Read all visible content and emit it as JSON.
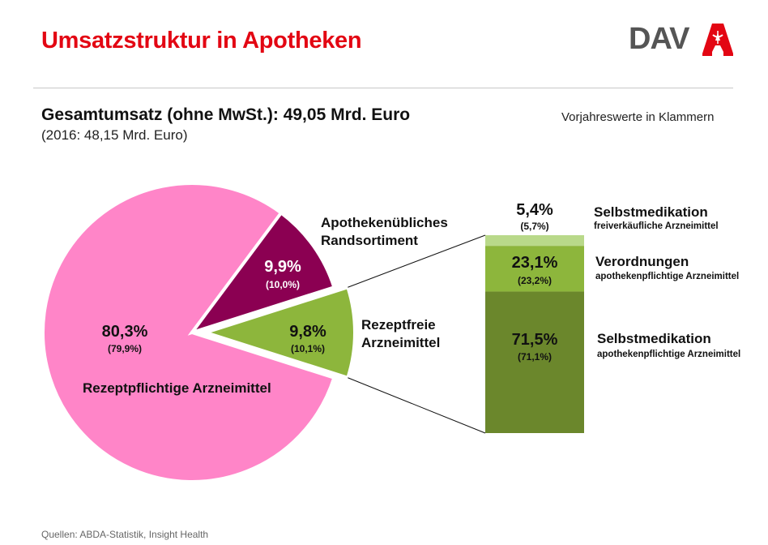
{
  "header": {
    "title": "Umsatzstruktur in Apotheken",
    "logo_text": "DAV",
    "brand_color": "#e30613"
  },
  "summary": {
    "headline": "Gesamtumsatz (ohne MwSt.): 49,05 Mrd. Euro",
    "previous_year": "(2016: 48,15 Mrd. Euro)",
    "note": "Vorjahreswerte in Klammern"
  },
  "chart_data": [
    {
      "type": "pie",
      "title": "Gesamtumsatz",
      "slices": [
        {
          "name": "Rezeptpflichtige Arzneimittel",
          "value": 80.3,
          "label": "80,3%",
          "previous_label": "(79,9%)",
          "color": "#ff85c8"
        },
        {
          "name": "Apothekenübliches Randsortiment",
          "name_line1": "Apothekenübliches",
          "name_line2": "Randsortiment",
          "value": 9.9,
          "label": "9,9%",
          "previous_label": "(10,0%)",
          "color": "#8b0052"
        },
        {
          "name": "Rezeptfreie Arzneimittel",
          "name_line1": "Rezeptfreie",
          "name_line2": "Arzneimittel",
          "value": 9.8,
          "label": "9,8%",
          "previous_label": "(10,1%)",
          "color": "#8db63c",
          "exploded": true
        }
      ]
    },
    {
      "type": "bar",
      "stacked": true,
      "title": "Rezeptfreie Arzneimittel",
      "segments": [
        {
          "name": "Selbstmedikation",
          "subtitle": "freiverkäufliche Arzneimittel",
          "value": 5.4,
          "label": "5,4%",
          "previous_label": "(5,7%)",
          "color": "#b9d98a"
        },
        {
          "name": "Verordnungen",
          "subtitle": "apothekenpflichtige Arzneimittel",
          "value": 23.1,
          "label": "23,1%",
          "previous_label": "(23,2%)",
          "color": "#8db63c"
        },
        {
          "name": "Selbstmedikation",
          "subtitle": "apothekenpflichtige Arzneimittel",
          "value": 71.5,
          "label": "71,5%",
          "previous_label": "(71,1%)",
          "color": "#6b872c"
        }
      ]
    }
  ],
  "footer": {
    "source": "Quellen: ABDA-Statistik, Insight Health"
  }
}
